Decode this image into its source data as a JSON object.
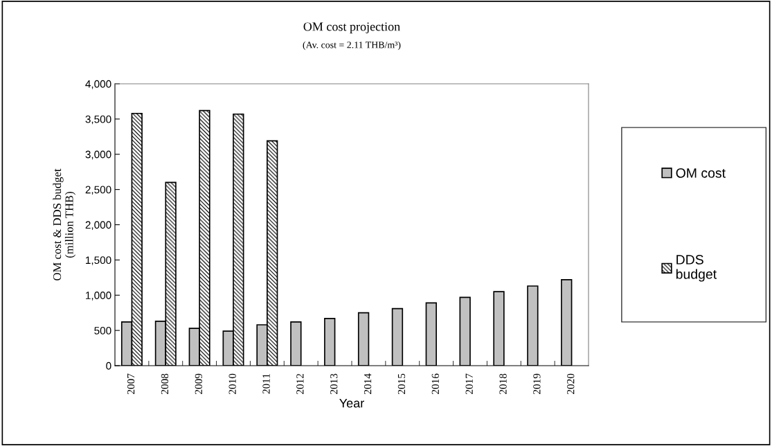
{
  "chart_data": {
    "type": "bar",
    "title": "OM cost projection",
    "subtitle": "(Av. cost = 2.11 THB/m³)",
    "xlabel": "Year",
    "ylabel": "OM cost & DDS budget\n(million THB)",
    "categories": [
      "2007",
      "2008",
      "2009",
      "2010",
      "2011",
      "2012",
      "2013",
      "2014",
      "2015",
      "2016",
      "2017",
      "2018",
      "2019",
      "2020"
    ],
    "series": [
      {
        "name": "OM cost",
        "color": "#c0c0c0",
        "values": [
          620,
          630,
          530,
          490,
          580,
          620,
          670,
          750,
          810,
          890,
          970,
          1050,
          1130,
          1220
        ]
      },
      {
        "name": "DDS\nbudget",
        "color": "#000000",
        "values": [
          3580,
          2600,
          3620,
          3570,
          3190,
          null,
          null,
          null,
          null,
          null,
          null,
          null,
          null,
          null
        ]
      }
    ],
    "ylim": [
      0,
      4000
    ],
    "yticks": [
      0,
      {
        "value": 500,
        "label": "500"
      },
      {
        "value": 1000,
        "label": "1,000"
      },
      {
        "value": 1500,
        "label": "1,500"
      },
      {
        "value": 2000,
        "label": "2,000"
      },
      {
        "value": 2500,
        "label": "2,500"
      },
      {
        "value": 3000,
        "label": "3,000"
      },
      {
        "value": 3500,
        "label": "3,500"
      },
      {
        "value": 4000,
        "label": "4,000"
      }
    ],
    "grid": false,
    "legend": "right"
  }
}
